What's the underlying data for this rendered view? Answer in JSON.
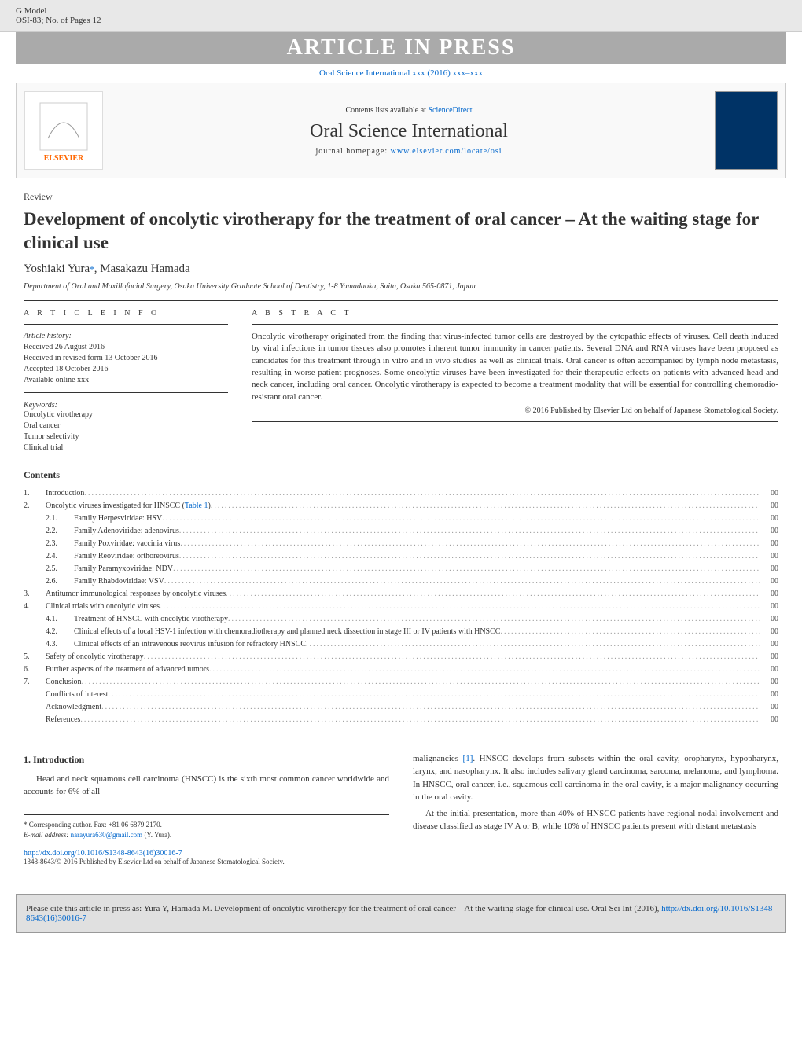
{
  "gmodel": {
    "label": "G Model",
    "code": "OSI-83;",
    "pages": "No. of Pages 12"
  },
  "banner": "ARTICLE IN PRESS",
  "journal_ref": "Oral Science International xxx (2016) xxx–xxx",
  "contents_available": "Contents lists available at",
  "sciencedirect": "ScienceDirect",
  "journal_name": "Oral Science International",
  "homepage_label": "journal homepage:",
  "homepage_url": "www.elsevier.com/locate/osi",
  "elsevier": "ELSEVIER",
  "review_label": "Review",
  "title": "Development of oncolytic virotherapy for the treatment of oral cancer – At the waiting stage for clinical use",
  "authors": [
    {
      "name": "Yoshiaki Yura",
      "corr": true
    },
    {
      "name": "Masakazu Hamada",
      "corr": false
    }
  ],
  "affiliation": "Department of Oral and Maxillofacial Surgery, Osaka University Graduate School of Dentistry, 1-8 Yamadaoka, Suita, Osaka 565-0871, Japan",
  "article_info_head": "A R T I C L E   I N F O",
  "abstract_head": "A B S T R A C T",
  "history_label": "Article history:",
  "history": {
    "received": "Received 26 August 2016",
    "revised": "Received in revised form 13 October 2016",
    "accepted": "Accepted 18 October 2016",
    "online": "Available online xxx"
  },
  "keywords_label": "Keywords:",
  "keywords": [
    "Oncolytic virotherapy",
    "Oral cancer",
    "Tumor selectivity",
    "Clinical trial"
  ],
  "abstract": "Oncolytic virotherapy originated from the finding that virus-infected tumor cells are destroyed by the cytopathic effects of viruses. Cell death induced by viral infections in tumor tissues also promotes inherent tumor immunity in cancer patients. Several DNA and RNA viruses have been proposed as candidates for this treatment through in vitro and in vivo studies as well as clinical trials. Oral cancer is often accompanied by lymph node metastasis, resulting in worse patient prognoses. Some oncolytic viruses have been investigated for their therapeutic effects on patients with advanced head and neck cancer, including oral cancer. Oncolytic virotherapy is expected to become a treatment modality that will be essential for controlling chemoradio-resistant oral cancer.",
  "copyright": "© 2016 Published by Elsevier Ltd on behalf of Japanese Stomatological Society.",
  "contents_heading": "Contents",
  "table1_link": "Table 1",
  "toc": [
    {
      "num": "1.",
      "title": "Introduction",
      "page": "00"
    },
    {
      "num": "2.",
      "title": "Oncolytic viruses investigated for HNSCC (",
      "page": "00",
      "has_table_link": true
    },
    {
      "sub": "2.1.",
      "title": "Family Herpesviridae: HSV",
      "page": "00"
    },
    {
      "sub": "2.2.",
      "title": "Family Adenoviridae: adenovirus",
      "page": "00"
    },
    {
      "sub": "2.3.",
      "title": "Family Poxviridae: vaccinia virus",
      "page": "00"
    },
    {
      "sub": "2.4.",
      "title": "Family Reoviridae: orthoreovirus",
      "page": "00"
    },
    {
      "sub": "2.5.",
      "title": "Family Paramyxoviridae: NDV",
      "page": "00"
    },
    {
      "sub": "2.6.",
      "title": "Family Rhabdoviridae: VSV",
      "page": "00"
    },
    {
      "num": "3.",
      "title": "Antitumor immunological responses by oncolytic viruses",
      "page": "00"
    },
    {
      "num": "4.",
      "title": "Clinical trials with oncolytic viruses",
      "page": "00"
    },
    {
      "sub": "4.1.",
      "title": "Treatment of HNSCC with oncolytic virotherapy",
      "page": "00"
    },
    {
      "sub": "4.2.",
      "title": "Clinical effects of a local HSV-1 infection with chemoradiotherapy and planned neck dissection in stage III or IV patients with HNSCC",
      "page": "00"
    },
    {
      "sub": "4.3.",
      "title": "Clinical effects of an intravenous reovirus infusion for refractory HNSCC",
      "page": "00"
    },
    {
      "num": "5.",
      "title": "Safety of oncolytic virotherapy",
      "page": "00"
    },
    {
      "num": "6.",
      "title": "Further aspects of the treatment of advanced tumors",
      "page": "00"
    },
    {
      "num": "7.",
      "title": "Conclusion",
      "page": "00"
    },
    {
      "title": "Conflicts of interest",
      "page": "00",
      "indent": true
    },
    {
      "title": "Acknowledgment",
      "page": "00",
      "indent": true
    },
    {
      "title": "References",
      "page": "00",
      "indent": true
    }
  ],
  "intro_heading": "1. Introduction",
  "intro_col1": "Head and neck squamous cell carcinoma (HNSCC) is the sixth most common cancer worldwide and accounts for 6% of all",
  "intro_col2_p1": "malignancies ",
  "ref1": "[1]",
  "intro_col2_p1b": ". HNSCC develops from subsets within the oral cavity, oropharynx, hypopharynx, larynx, and nasopharynx. It also includes salivary gland carcinoma, sarcoma, melanoma, and lymphoma. In HNSCC, oral cancer, i.e., squamous cell carcinoma in the oral cavity, is a major malignancy occurring in the oral cavity.",
  "intro_col2_p2": "At the initial presentation, more than 40% of HNSCC patients have regional nodal involvement and disease classified as stage IV A or B, while 10% of HNSCC patients present with distant metastasis",
  "footnote_corr": "* Corresponding author. Fax: +81 06 6879 2170.",
  "footnote_email_label": "E-mail address:",
  "footnote_email": "narayura630@gmail.com",
  "footnote_email_who": "(Y. Yura).",
  "doi": "http://dx.doi.org/10.1016/S1348-8643(16)30016-7",
  "issn": "1348-8643/© 2016 Published by Elsevier Ltd on behalf of Japanese Stomatological Society.",
  "citebox": "Please cite this article in press as: Yura Y, Hamada M. Development of oncolytic virotherapy for the treatment of oral cancer – At the waiting stage for clinical use. Oral Sci Int (2016), ",
  "citebox_doi": "http://dx.doi.org/10.1016/S1348-8643(16)30016-7",
  "colors": {
    "link": "#0066cc",
    "banner_bg": "#aaaaaa",
    "gmodel_bg": "#e8e8e8",
    "citebox_bg": "#e0e0e0"
  }
}
